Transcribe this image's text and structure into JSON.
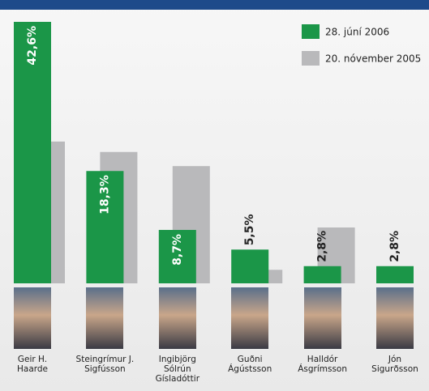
{
  "chart_data": {
    "type": "bar",
    "categories": [
      "Geir H.\nHaarde",
      "Steingrímur J.\nSigfússon",
      "Ingibjörg\nSólrún\nGísladóttir",
      "Guðni\nÁgústsson",
      "Halldór\nÁsgrímsson",
      "Jón\nSigurðsson"
    ],
    "series": [
      {
        "name": "28. júní 2006",
        "color": "#1b9648",
        "values": [
          42.6,
          18.3,
          8.7,
          5.5,
          2.8,
          2.8
        ],
        "value_labels": [
          "42,6%",
          "18,3%",
          "8,7%",
          "5,5%",
          "2,8%",
          "2,8%"
        ]
      },
      {
        "name": "20. nóvember 2005",
        "color": "#b9b9bb",
        "values": [
          23.1,
          21.4,
          19.1,
          2.2,
          9.1,
          null
        ]
      }
    ],
    "legend": "top-right"
  }
}
